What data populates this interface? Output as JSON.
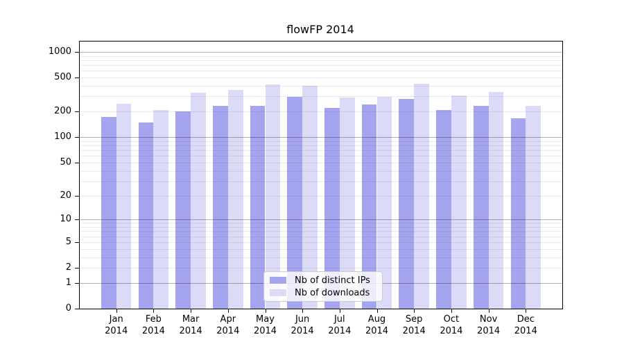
{
  "chart_data": {
    "type": "bar",
    "title": "flowFP 2014",
    "categories": [
      "Jan",
      "Feb",
      "Mar",
      "Apr",
      "May",
      "Jun",
      "Jul",
      "Aug",
      "Sep",
      "Oct",
      "Nov",
      "Dec"
    ],
    "x_year_label": "2014",
    "series": [
      {
        "name": "Nb of distinct IPs",
        "color": "#a4a4ef",
        "values": [
          172,
          148,
          202,
          234,
          231,
          297,
          221,
          243,
          282,
          208,
          234,
          167
        ]
      },
      {
        "name": "Nb of downloads",
        "color": "#dbdbf8",
        "values": [
          246,
          208,
          330,
          356,
          415,
          402,
          291,
          297,
          423,
          310,
          338,
          233
        ]
      }
    ],
    "xlabel": "",
    "ylabel": "",
    "y_scale": "log1p",
    "y_ticks": [
      0,
      1,
      2,
      5,
      10,
      20,
      50,
      100,
      200,
      500,
      1000
    ],
    "ylim": [
      0,
      1320
    ],
    "grid": "horizontal",
    "legend_position": "bottom-center"
  }
}
